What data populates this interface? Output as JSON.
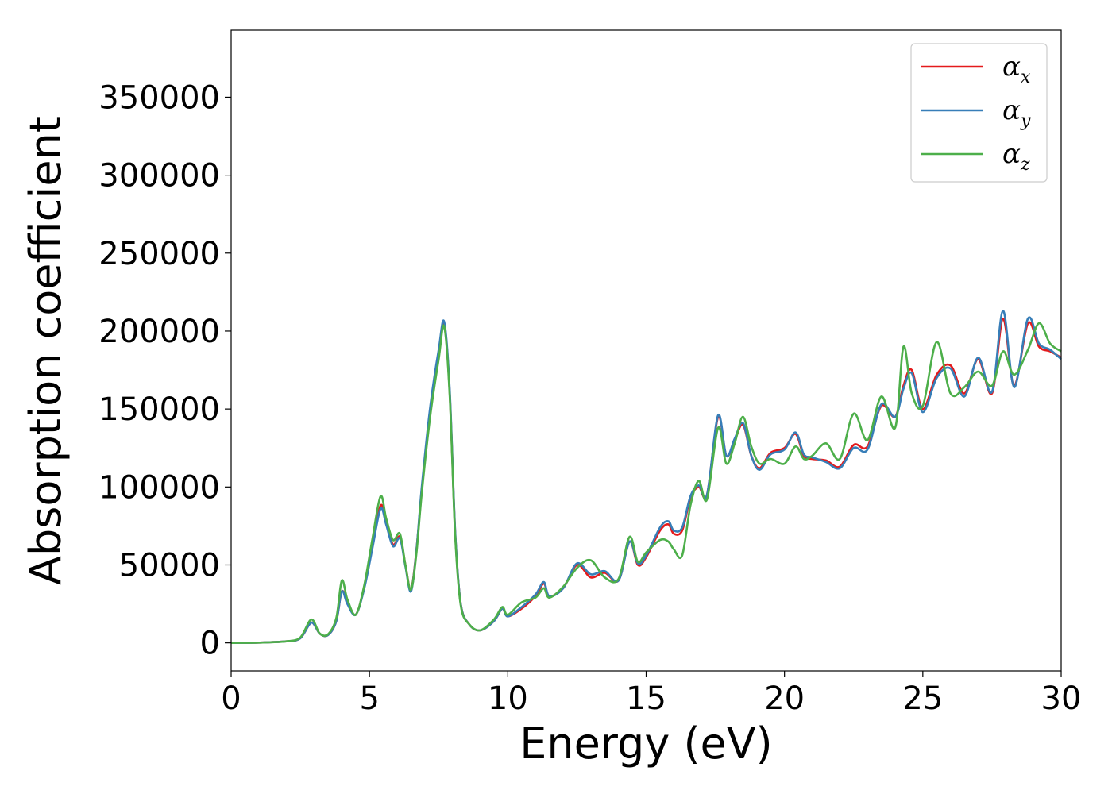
{
  "chart_data": {
    "type": "line",
    "title": "",
    "xlabel": "Energy (eV)",
    "ylabel": "Absorption coefficient",
    "xlim": [
      0,
      30
    ],
    "ylim": [
      -18000,
      393000
    ],
    "xticks": [
      0,
      5,
      10,
      15,
      20,
      25,
      30
    ],
    "xtick_labels": [
      "0",
      "5",
      "10",
      "15",
      "20",
      "25",
      "30"
    ],
    "yticks": [
      0,
      50000,
      100000,
      150000,
      200000,
      250000,
      300000,
      350000
    ],
    "ytick_labels": [
      "0",
      "50000",
      "100000",
      "150000",
      "200000",
      "250000",
      "300000",
      "350000"
    ],
    "grid": false,
    "legend_position": "top-right",
    "x": [
      0,
      1,
      2,
      2.5,
      2.9,
      3.2,
      3.5,
      3.8,
      4.0,
      4.2,
      4.5,
      4.8,
      5.1,
      5.4,
      5.6,
      5.85,
      6.1,
      6.3,
      6.5,
      6.7,
      6.9,
      7.2,
      7.5,
      7.7,
      7.9,
      8.1,
      8.3,
      8.6,
      9.0,
      9.5,
      9.8,
      10.0,
      10.5,
      11.0,
      11.3,
      11.5,
      12.0,
      12.5,
      13.0,
      13.5,
      14.0,
      14.4,
      14.7,
      15.0,
      15.5,
      15.8,
      16.0,
      16.3,
      16.6,
      16.9,
      17.2,
      17.6,
      17.9,
      18.2,
      18.5,
      18.8,
      19.1,
      19.5,
      20.0,
      20.4,
      20.7,
      21.0,
      21.5,
      22.0,
      22.5,
      23.0,
      23.5,
      24.0,
      24.3,
      24.6,
      25.0,
      25.5,
      26.0,
      26.5,
      27.0,
      27.5,
      27.9,
      28.3,
      28.8,
      29.2,
      29.6,
      30.0
    ],
    "series": [
      {
        "name": "α_x",
        "color": "#e41a1c",
        "values": [
          0,
          200,
          1000,
          3000,
          13000,
          6000,
          5000,
          14000,
          33000,
          26000,
          18000,
          35000,
          62000,
          88000,
          78000,
          63000,
          68000,
          50000,
          34000,
          60000,
          100000,
          150000,
          185000,
          205000,
          160000,
          70000,
          25000,
          12000,
          8000,
          14000,
          22000,
          17000,
          22000,
          30000,
          38000,
          30000,
          35000,
          50000,
          42000,
          45000,
          40000,
          65000,
          50000,
          55000,
          72000,
          76000,
          70000,
          72000,
          93000,
          100000,
          95000,
          145000,
          120000,
          130000,
          140000,
          120000,
          112000,
          122000,
          125000,
          134000,
          120000,
          118000,
          117000,
          113000,
          127000,
          126000,
          152000,
          145000,
          165000,
          175000,
          150000,
          172000,
          178000,
          160000,
          182000,
          160000,
          208000,
          165000,
          205000,
          190000,
          187000,
          183000
        ]
      },
      {
        "name": "α_y",
        "color": "#377eb8",
        "values": [
          0,
          200,
          1000,
          3000,
          13000,
          6000,
          5000,
          14000,
          33000,
          25000,
          18000,
          34000,
          60000,
          86000,
          76000,
          62000,
          67000,
          49000,
          33000,
          60000,
          102000,
          152000,
          188000,
          206000,
          162000,
          71000,
          25000,
          12000,
          8000,
          14000,
          22000,
          17000,
          23000,
          31000,
          39000,
          30000,
          35000,
          51000,
          44000,
          46000,
          40000,
          65000,
          51000,
          56000,
          74000,
          78000,
          72000,
          74000,
          94000,
          101000,
          95000,
          146000,
          120000,
          131000,
          141000,
          120000,
          111000,
          121000,
          124000,
          135000,
          121000,
          119000,
          116000,
          112000,
          125000,
          124000,
          153000,
          145000,
          163000,
          173000,
          148000,
          170000,
          176000,
          158000,
          183000,
          161000,
          213000,
          164000,
          208000,
          192000,
          188000,
          182000
        ]
      },
      {
        "name": "α_z",
        "color": "#4daf4a",
        "values": [
          0,
          200,
          1000,
          3500,
          15000,
          6000,
          5500,
          16000,
          40000,
          28000,
          18000,
          36000,
          66000,
          94000,
          80000,
          66000,
          70000,
          50000,
          34000,
          58000,
          98000,
          146000,
          182000,
          203000,
          158000,
          68000,
          24000,
          12000,
          8000,
          15000,
          23000,
          18000,
          26000,
          29000,
          35000,
          29000,
          36000,
          48000,
          53000,
          42000,
          41000,
          68000,
          52000,
          58000,
          66000,
          65000,
          60000,
          56000,
          88000,
          104000,
          92000,
          138000,
          115000,
          128000,
          145000,
          126000,
          115000,
          118000,
          115000,
          126000,
          118000,
          120000,
          128000,
          118000,
          147000,
          130000,
          158000,
          138000,
          190000,
          160000,
          152000,
          193000,
          160000,
          164000,
          174000,
          165000,
          187000,
          172000,
          188000,
          205000,
          192000,
          187000
        ]
      }
    ]
  }
}
